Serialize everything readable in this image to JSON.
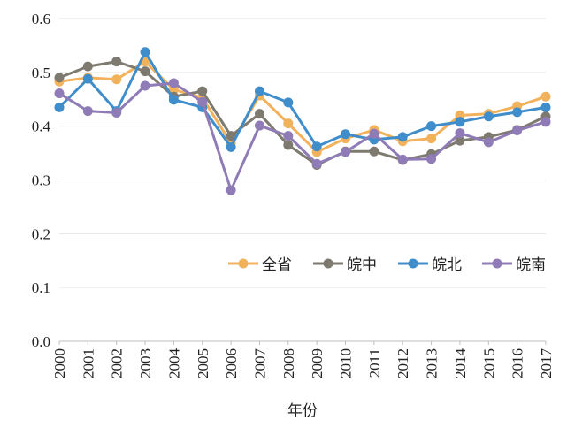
{
  "chart_data": {
    "type": "line",
    "xlabel": "年份",
    "ylabel": "",
    "ylim": [
      0,
      0.6
    ],
    "yticks": [
      "0.0",
      "0.1",
      "0.2",
      "0.3",
      "0.4",
      "0.5",
      "0.6"
    ],
    "grid": true,
    "legend_position": "right",
    "categories": [
      "2000",
      "2001",
      "2002",
      "2003",
      "2004",
      "2005",
      "2006",
      "2007",
      "2008",
      "2009",
      "2010",
      "2011",
      "2012",
      "2013",
      "2014",
      "2015",
      "2016",
      "2017"
    ],
    "series": [
      {
        "name": "全省",
        "color": "#F2B25C",
        "values": [
          0.483,
          0.49,
          0.487,
          0.52,
          0.468,
          0.453,
          0.368,
          0.457,
          0.405,
          0.352,
          0.377,
          0.393,
          0.372,
          0.377,
          0.42,
          0.423,
          0.437,
          0.455
        ]
      },
      {
        "name": "皖中",
        "color": "#7E7A70",
        "values": [
          0.49,
          0.511,
          0.52,
          0.502,
          0.455,
          0.465,
          0.382,
          0.423,
          0.365,
          0.328,
          0.353,
          0.353,
          0.337,
          0.348,
          0.373,
          0.38,
          0.393,
          0.418
        ]
      },
      {
        "name": "皖北",
        "color": "#3F8DCA",
        "values": [
          0.435,
          0.488,
          0.428,
          0.538,
          0.449,
          0.435,
          0.361,
          0.465,
          0.444,
          0.362,
          0.385,
          0.375,
          0.38,
          0.4,
          0.408,
          0.418,
          0.426,
          0.435
        ]
      },
      {
        "name": "皖南",
        "color": "#8F7CB6",
        "values": [
          0.461,
          0.428,
          0.425,
          0.475,
          0.48,
          0.445,
          0.281,
          0.401,
          0.382,
          0.33,
          0.352,
          0.386,
          0.338,
          0.339,
          0.387,
          0.37,
          0.392,
          0.408
        ]
      }
    ]
  }
}
